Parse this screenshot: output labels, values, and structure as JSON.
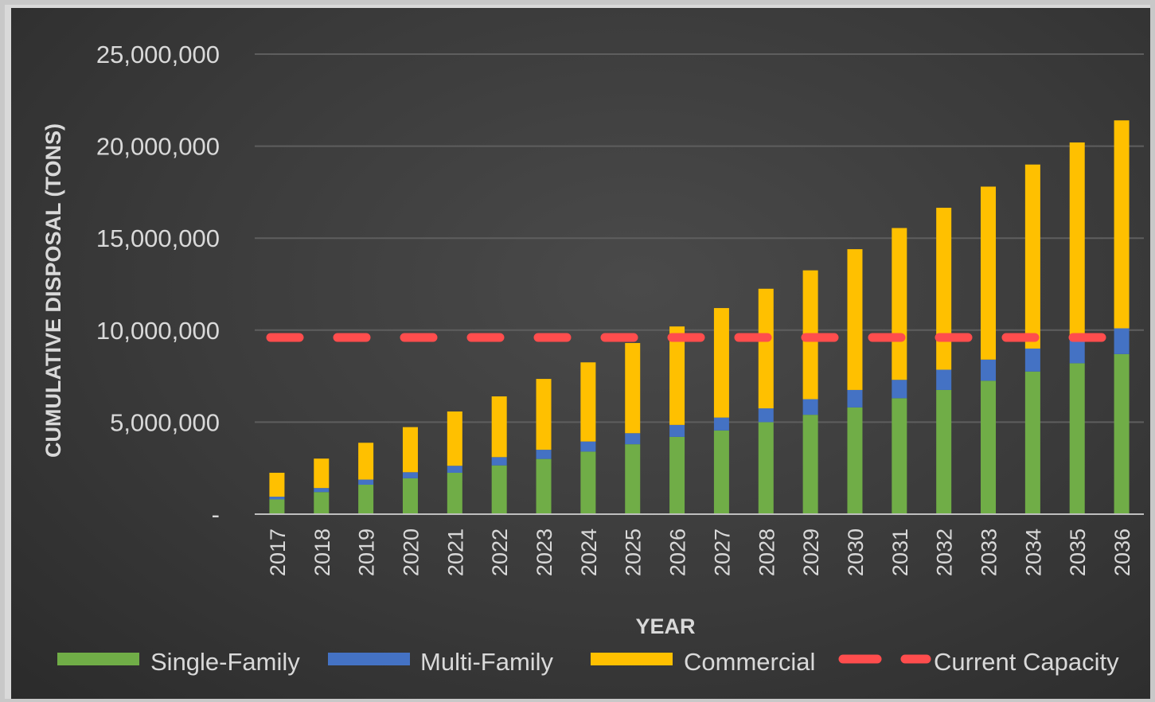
{
  "chart_data": {
    "type": "bar",
    "stacked": true,
    "title": "",
    "xlabel": "YEAR",
    "ylabel": "CUMULATIVE DISPOSAL (TONS)",
    "ylim": [
      0,
      25000000
    ],
    "yticks": [
      0,
      5000000,
      10000000,
      15000000,
      20000000,
      25000000
    ],
    "ytick_labels": [
      "-",
      "5,000,000",
      "10,000,000",
      "15,000,000",
      "20,000,000",
      "25,000,000"
    ],
    "grid": true,
    "legend_position": "bottom",
    "categories": [
      "2017",
      "2018",
      "2019",
      "2020",
      "2021",
      "2022",
      "2023",
      "2024",
      "2025",
      "2026",
      "2027",
      "2028",
      "2029",
      "2030",
      "2031",
      "2032",
      "2033",
      "2034",
      "2035",
      "2036"
    ],
    "series": [
      {
        "name": "Single-Family",
        "color": "#70ad47",
        "values": [
          800000,
          1200000,
          1600000,
          1950000,
          2250000,
          2650000,
          3000000,
          3400000,
          3800000,
          4200000,
          4550000,
          5000000,
          5400000,
          5800000,
          6300000,
          6750000,
          7250000,
          7750000,
          8200000,
          8700000
        ]
      },
      {
        "name": "Multi-Family",
        "color": "#4472c4",
        "values": [
          150000,
          220000,
          280000,
          330000,
          380000,
          450000,
          500000,
          550000,
          600000,
          650000,
          700000,
          750000,
          850000,
          950000,
          1000000,
          1100000,
          1150000,
          1250000,
          1350000,
          1400000
        ]
      },
      {
        "name": "Commercial",
        "color": "#ffc000",
        "values": [
          1300000,
          1600000,
          2000000,
          2450000,
          2950000,
          3300000,
          3850000,
          4300000,
          4900000,
          5350000,
          5950000,
          6500000,
          7000000,
          7650000,
          8250000,
          8800000,
          9400000,
          10000000,
          10650000,
          11300000
        ]
      }
    ],
    "reference_lines": [
      {
        "name": "Current Capacity",
        "color": "#ff4d4d",
        "style": "dashed",
        "value": 9600000
      }
    ]
  }
}
